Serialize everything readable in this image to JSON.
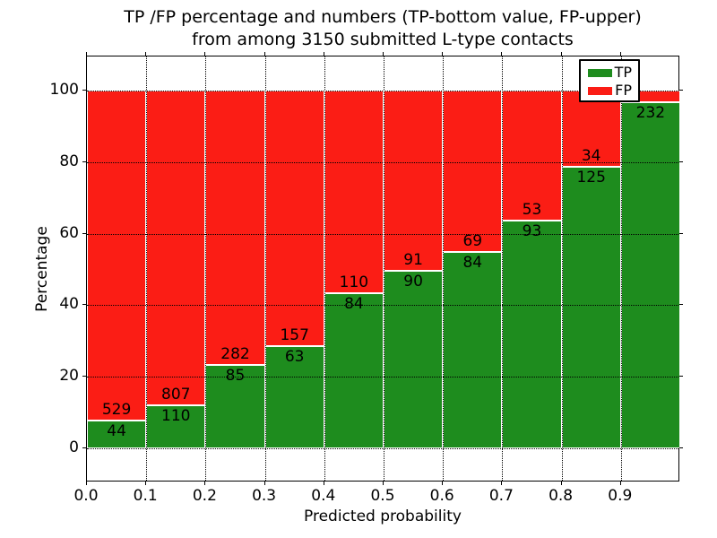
{
  "figure": {
    "title_line1": "TP /FP percentage and numbers (TP-bottom value, FP-upper)",
    "title_line2": "from among 3150 submitted L-type contacts"
  },
  "chart_data": {
    "type": "bar",
    "stacked": true,
    "normalized_to_100_percent": true,
    "title": "TP /FP percentage and numbers (TP-bottom value, FP-upper)\nfrom among 3150 submitted L-type contacts",
    "total_submitted": 3150,
    "xlabel": "Predicted probability",
    "ylabel": "Percentage",
    "bin_width": 0.1,
    "bin_starts": [
      0.0,
      0.1,
      0.2,
      0.3,
      0.4,
      0.5,
      0.6,
      0.7,
      0.8,
      0.9
    ],
    "xticks": [
      "0.0",
      "0.1",
      "0.2",
      "0.3",
      "0.4",
      "0.5",
      "0.6",
      "0.7",
      "0.8",
      "0.9"
    ],
    "yticks": [
      0,
      20,
      40,
      60,
      80,
      100
    ],
    "xlim": [
      0.0,
      1.0
    ],
    "ylim": [
      -9.5,
      109.5
    ],
    "grid": true,
    "grid_style": "dotted",
    "series": [
      {
        "name": "TP",
        "color": "#1e8c1e",
        "counts": [
          44,
          110,
          85,
          63,
          84,
          90,
          84,
          93,
          125,
          232
        ],
        "labels": [
          "44",
          "110",
          "85",
          "63",
          "84",
          "90",
          "84",
          "93",
          "125",
          "232"
        ],
        "pct": [
          7.7,
          12.0,
          23.2,
          28.6,
          43.3,
          49.7,
          54.9,
          63.7,
          78.6,
          96.7
        ]
      },
      {
        "name": "FP",
        "color": "#fb1d15",
        "counts": [
          529,
          807,
          282,
          157,
          110,
          91,
          69,
          53,
          34,
          null
        ],
        "labels": [
          "529",
          "807",
          "282",
          "157",
          "110",
          "91",
          "69",
          "53",
          "34",
          ""
        ],
        "pct": [
          92.3,
          88.0,
          76.8,
          71.4,
          56.7,
          50.3,
          45.1,
          36.3,
          21.4,
          3.3
        ]
      }
    ],
    "legend": {
      "position": "upper right",
      "entries": [
        {
          "label": "TP",
          "color": "#1e8c1e"
        },
        {
          "label": "FP",
          "color": "#fb1d15"
        }
      ]
    }
  },
  "colors": {
    "tp_green": "#1e8c1e",
    "fp_red": "#fb1d15",
    "grid": "#000000",
    "frame": "#000000",
    "background": "#ffffff"
  }
}
